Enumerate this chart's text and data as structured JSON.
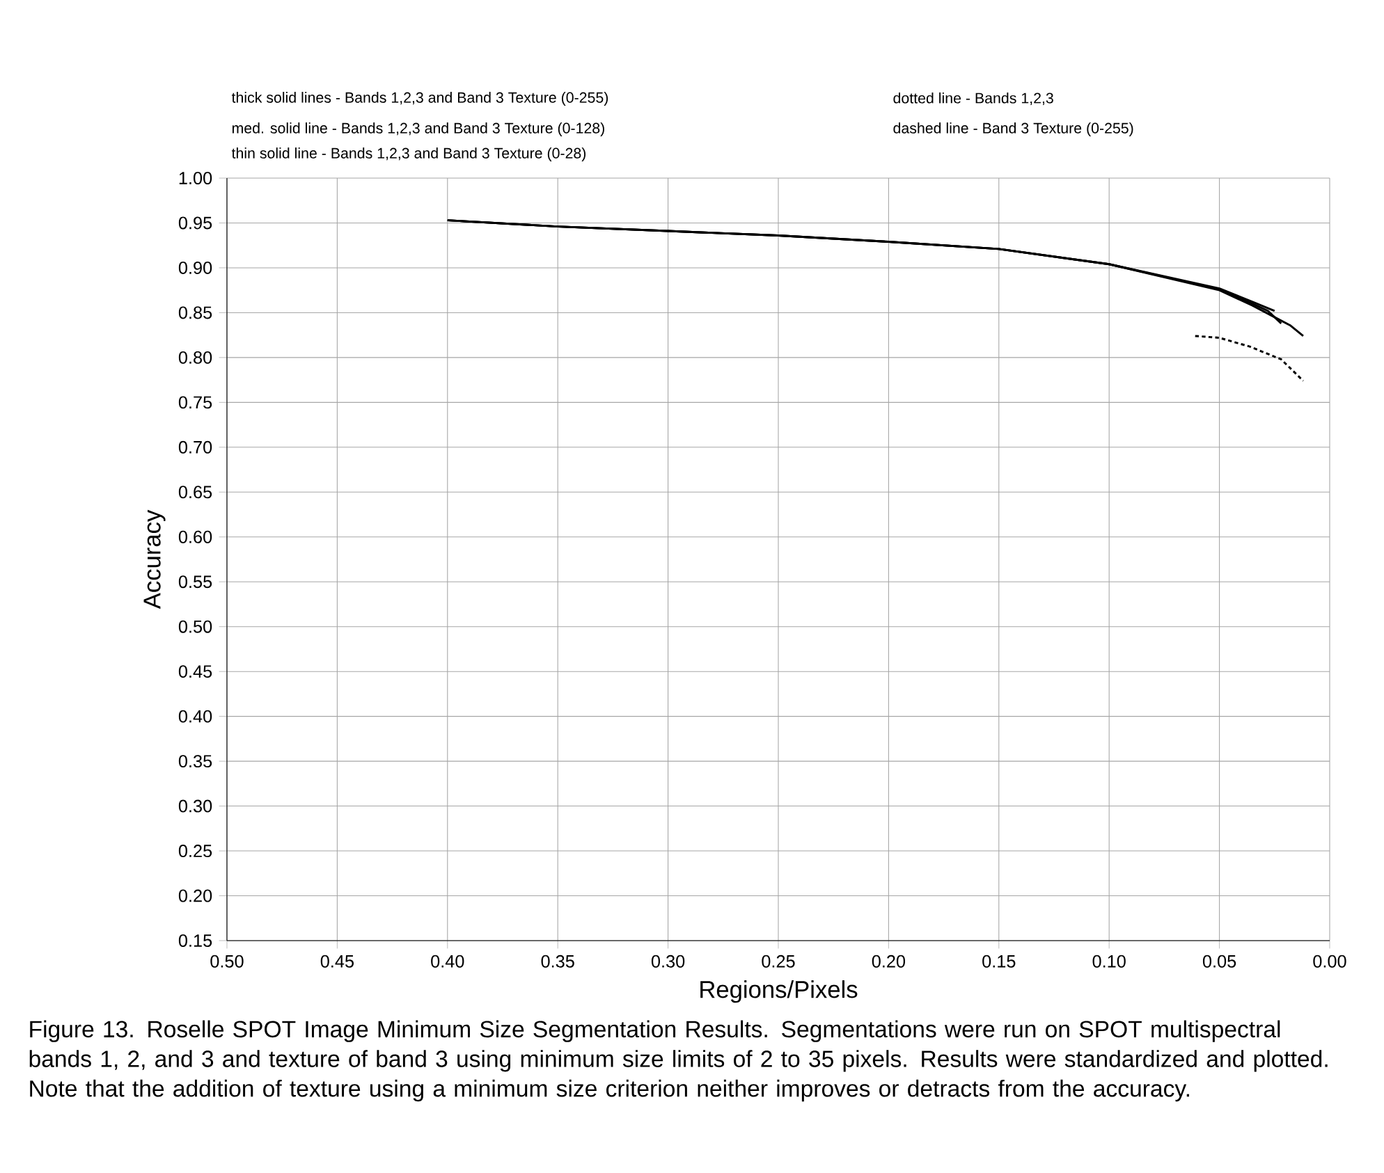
{
  "chart_data": {
    "type": "line",
    "xlabel": "Regions/Pixels",
    "ylabel": "Accuracy",
    "xlim": [
      0.5,
      0.0
    ],
    "ylim": [
      0.15,
      1.0
    ],
    "xticks": [
      {
        "value": 0.5,
        "label": "0.50"
      },
      {
        "value": 0.45,
        "label": "0.45"
      },
      {
        "value": 0.4,
        "label": "0.40"
      },
      {
        "value": 0.35,
        "label": "0.35"
      },
      {
        "value": 0.3,
        "label": "0.30"
      },
      {
        "value": 0.25,
        "label": "0.25"
      },
      {
        "value": 0.2,
        "label": "0.20"
      },
      {
        "value": 0.15,
        "label": "0.15"
      },
      {
        "value": 0.1,
        "label": "0.10"
      },
      {
        "value": 0.05,
        "label": "0.05"
      },
      {
        "value": 0.0,
        "label": "0.00"
      }
    ],
    "yticks": [
      {
        "value": 0.15,
        "label": "0.15"
      },
      {
        "value": 0.2,
        "label": "0.20"
      },
      {
        "value": 0.25,
        "label": "0.25"
      },
      {
        "value": 0.3,
        "label": "0.30"
      },
      {
        "value": 0.35,
        "label": "0.35"
      },
      {
        "value": 0.4,
        "label": "0.40"
      },
      {
        "value": 0.45,
        "label": "0.45"
      },
      {
        "value": 0.5,
        "label": "0.50"
      },
      {
        "value": 0.55,
        "label": "0.55"
      },
      {
        "value": 0.6,
        "label": "0.60"
      },
      {
        "value": 0.65,
        "label": "0.65"
      },
      {
        "value": 0.7,
        "label": "0.70"
      },
      {
        "value": 0.75,
        "label": "0.75"
      },
      {
        "value": 0.8,
        "label": "0.80"
      },
      {
        "value": 0.85,
        "label": "0.85"
      },
      {
        "value": 0.9,
        "label": "0.90"
      },
      {
        "value": 0.95,
        "label": "0.95"
      },
      {
        "value": 1.0,
        "label": "1.00"
      }
    ],
    "grid": true,
    "marker": "none",
    "series": [
      {
        "color": "#000000",
        "line_style": "solid",
        "x": [
          0.4,
          0.35,
          0.3,
          0.25,
          0.2,
          0.15,
          0.1,
          0.05,
          0.035,
          0.025,
          0.018,
          0.012
        ],
        "values": [
          0.953,
          0.946,
          0.941,
          0.936,
          0.929,
          0.921,
          0.904,
          0.875,
          0.858,
          0.845,
          0.836,
          0.824
        ]
      },
      {
        "color": "#000000",
        "line_style": "solid",
        "x": [
          0.4,
          0.35,
          0.3,
          0.25,
          0.2,
          0.15,
          0.1,
          0.05,
          0.035,
          0.028,
          0.022
        ],
        "values": [
          0.953,
          0.946,
          0.941,
          0.936,
          0.929,
          0.921,
          0.904,
          0.876,
          0.86,
          0.852,
          0.838
        ]
      },
      {
        "color": "#000000",
        "line_style": "solid",
        "x": [
          0.4,
          0.35,
          0.3,
          0.25,
          0.2,
          0.15,
          0.1,
          0.05,
          0.035,
          0.025
        ],
        "values": [
          0.953,
          0.946,
          0.941,
          0.936,
          0.929,
          0.921,
          0.904,
          0.877,
          0.862,
          0.852
        ]
      },
      {
        "color": "#000000",
        "line_style": "dotted",
        "x": [
          0.061,
          0.05,
          0.036,
          0.022,
          0.012
        ],
        "values": [
          0.824,
          0.822,
          0.812,
          0.798,
          0.774
        ]
      }
    ],
    "annotations": [
      "thick solid lines - Bands 1,2,3 and Band 3 Texture (0-255)",
      "med. solid line - Bands 1,2,3 and Band 3 Texture (0-128)",
      "thin solid line - Bands 1,2,3 and Band 3 Texture (0-28)",
      "dotted line - Bands 1,2,3",
      "dashed line - Band 3 Texture (0-255)",
      "Figure 13. Roselle SPOT Image Minimum Size Segmentation Results. Segmentations were run on SPOT multispectral bands 1, 2, and 3 and texture of band 3 using minimum size limits of 2 to 35 pixels. Results were standardized and plotted. Note that the addition of texture using a minimum size criterion neither improves or detracts from the accuracy."
    ]
  }
}
